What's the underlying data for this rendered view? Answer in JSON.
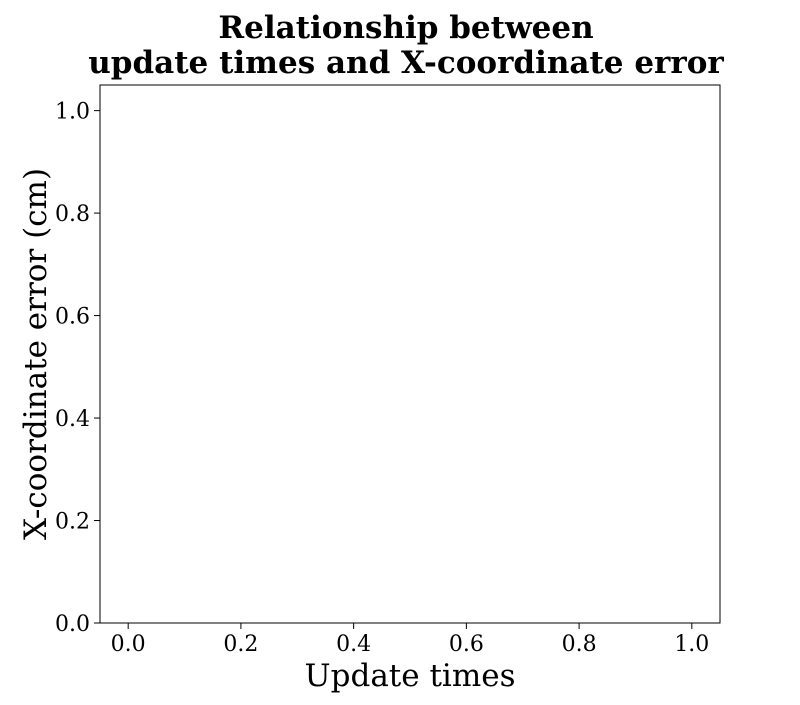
{
  "chart_data": {
    "type": "scatter",
    "title": [
      "Relationship between",
      "update times and X-coordinate error"
    ],
    "xlabel": "Update times",
    "ylabel": "X-coordinate error (cm)",
    "xlim": [
      -0.05,
      1.05
    ],
    "ylim": [
      0.0,
      1.05
    ],
    "xticks": [
      0.0,
      0.2,
      0.4,
      0.6,
      0.8,
      1.0
    ],
    "xtick_labels": [
      "0.0",
      "0.2",
      "0.4",
      "0.6",
      "0.8",
      "1.0"
    ],
    "yticks": [
      0.0,
      0.2,
      0.4,
      0.6,
      0.8,
      1.0
    ],
    "ytick_labels": [
      "0.0",
      "0.2",
      "0.4",
      "0.6",
      "0.8",
      "1.0"
    ],
    "grid": false,
    "series": []
  }
}
